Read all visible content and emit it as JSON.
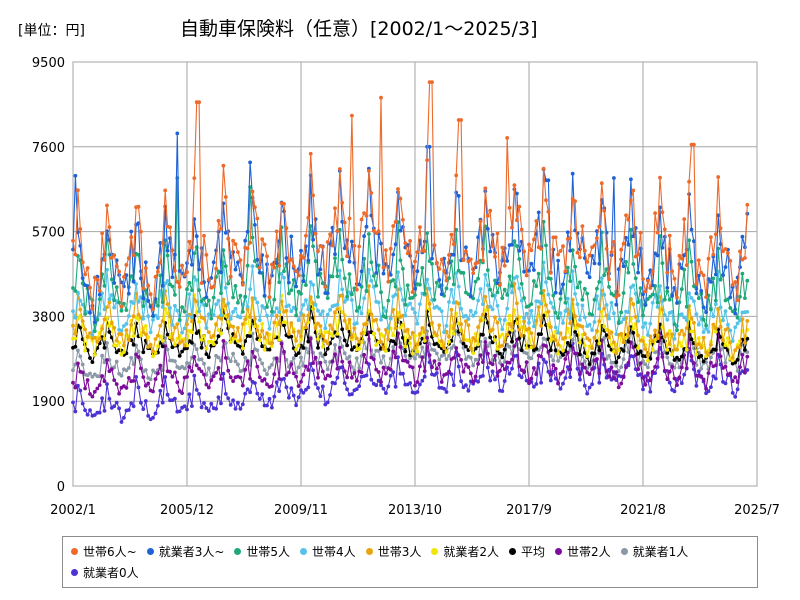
{
  "chart_data": {
    "type": "line",
    "title": "自動車保険料（任意）[2002/1～2025/3]",
    "unit_label": "[単位：円]",
    "ylim": [
      0,
      9500
    ],
    "y_ticks": [
      "0",
      "1900",
      "3800",
      "5700",
      "7600",
      "9500"
    ],
    "y_tick_values": [
      0,
      1900,
      3800,
      5700,
      7600,
      9500
    ],
    "xlim": [
      "2002/1",
      "2025/7"
    ],
    "x_ticks": [
      "2002/1",
      "2005/12",
      "2009/11",
      "2013/10",
      "2017/9",
      "2021/8",
      "2025/7"
    ],
    "grid": true,
    "legend_position": "bottom",
    "series_start": "2002/1",
    "series_end": "2025/3",
    "series": [
      {
        "name": "世帯6人~",
        "color": "#ed6a2a",
        "base": [
          4800,
          5000,
          5100,
          5050,
          5200,
          5300,
          5400,
          5300,
          5500,
          5700,
          5600,
          5500,
          5400,
          5450,
          5500,
          5600,
          5550,
          5450,
          5350,
          5400,
          5250,
          5150,
          5200,
          5100,
          5150,
          4900
        ],
        "amp": 1400,
        "noise": 0.1,
        "spikes": [
          [
            2006.3,
            8600
          ],
          [
            2011.6,
            8300
          ],
          [
            2012.6,
            8700
          ],
          [
            2014.3,
            9050
          ],
          [
            2015.3,
            8200
          ],
          [
            2016.9,
            7800
          ],
          [
            2023.3,
            7650
          ]
        ],
        "last": 6300
      },
      {
        "name": "就業者3人~",
        "color": "#1f62d6",
        "base": [
          4600,
          4800,
          4900,
          4850,
          5000,
          5100,
          5150,
          5100,
          5250,
          5400,
          5350,
          5300,
          5200,
          5250,
          5300,
          5350,
          5300,
          5200,
          5100,
          5150,
          5000,
          4950,
          4950,
          4900,
          4900,
          4800
        ],
        "amp": 1300,
        "noise": 0.1,
        "spikes": [
          [
            2002.1,
            6950
          ],
          [
            2005.6,
            7900
          ],
          [
            2008.1,
            7250
          ],
          [
            2014.2,
            7600
          ],
          [
            2018.3,
            6850
          ],
          [
            2020.6,
            6900
          ]
        ],
        "last": 6100
      },
      {
        "name": "世帯5人",
        "color": "#1fa87a",
        "base": [
          4200,
          4350,
          4400,
          4400,
          4500,
          4550,
          4600,
          4550,
          4600,
          4700,
          4650,
          4600,
          4550,
          4600,
          4600,
          4650,
          4600,
          4500,
          4450,
          4450,
          4350,
          4300,
          4300,
          4250,
          4250,
          4200
        ],
        "amp": 1000,
        "noise": 0.08,
        "spikes": [
          [
            2005.6,
            6900
          ],
          [
            2008.1,
            6700
          ]
        ],
        "last": 4600
      },
      {
        "name": "世帯4人",
        "color": "#55c2e8",
        "base": [
          3800,
          3900,
          3950,
          3950,
          4000,
          4050,
          4100,
          4050,
          4100,
          4150,
          4100,
          4050,
          4050,
          4050,
          4050,
          4100,
          4050,
          4000,
          3950,
          3950,
          3900,
          3850,
          3850,
          3800,
          3800,
          3750
        ],
        "amp": 700,
        "noise": 0.07,
        "spikes": [],
        "last": 3900
      },
      {
        "name": "世帯3人",
        "color": "#eaa40f",
        "base": [
          3450,
          3500,
          3550,
          3550,
          3600,
          3650,
          3650,
          3600,
          3650,
          3700,
          3650,
          3600,
          3600,
          3600,
          3600,
          3650,
          3600,
          3550,
          3500,
          3500,
          3450,
          3400,
          3400,
          3400,
          3400,
          3350
        ],
        "amp": 650,
        "noise": 0.07,
        "spikes": [],
        "last": 3700
      },
      {
        "name": "就業者2人",
        "color": "#f2e600",
        "base": [
          3300,
          3350,
          3400,
          3400,
          3450,
          3500,
          3500,
          3450,
          3500,
          3550,
          3500,
          3450,
          3450,
          3450,
          3450,
          3500,
          3450,
          3400,
          3350,
          3350,
          3300,
          3250,
          3250,
          3250,
          3250,
          3200
        ],
        "amp": 600,
        "noise": 0.07,
        "spikes": [],
        "last": 3500
      },
      {
        "name": "平均",
        "color": "#000000",
        "base": [
          3100,
          3150,
          3200,
          3200,
          3250,
          3300,
          3300,
          3250,
          3300,
          3350,
          3300,
          3250,
          3250,
          3250,
          3250,
          3300,
          3250,
          3200,
          3150,
          3150,
          3100,
          3050,
          3050,
          3050,
          3050,
          3000
        ],
        "amp": 550,
        "noise": 0.05,
        "spikes": [],
        "last": 3300
      },
      {
        "name": "世帯2人",
        "color": "#7d0e9b",
        "base": [
          2300,
          2350,
          2400,
          2400,
          2450,
          2500,
          2550,
          2550,
          2600,
          2650,
          2700,
          2700,
          2750,
          2750,
          2750,
          2800,
          2750,
          2750,
          2700,
          2700,
          2700,
          2650,
          2650,
          2650,
          2650,
          2600
        ],
        "amp": 550,
        "noise": 0.08,
        "spikes": [],
        "last": 2900
      },
      {
        "name": "就業者1人",
        "color": "#8b98a8",
        "base": [
          2600,
          2650,
          2700,
          2700,
          2750,
          2800,
          2850,
          2850,
          2900,
          2950,
          2950,
          2950,
          3000,
          3000,
          3000,
          3050,
          3000,
          3000,
          2950,
          2950,
          2950,
          2900,
          2900,
          2900,
          2900,
          2850
        ],
        "amp": 450,
        "noise": 0.06,
        "spikes": [],
        "last": 3000
      },
      {
        "name": "就業者0人",
        "color": "#4b33d4",
        "base": [
          1700,
          1750,
          1800,
          1850,
          1900,
          1950,
          2000,
          2050,
          2150,
          2250,
          2300,
          2350,
          2400,
          2450,
          2450,
          2500,
          2500,
          2500,
          2500,
          2500,
          2500,
          2450,
          2450,
          2450,
          2450,
          2400
        ],
        "amp": 500,
        "noise": 0.09,
        "spikes": [],
        "last": 2600
      }
    ]
  }
}
